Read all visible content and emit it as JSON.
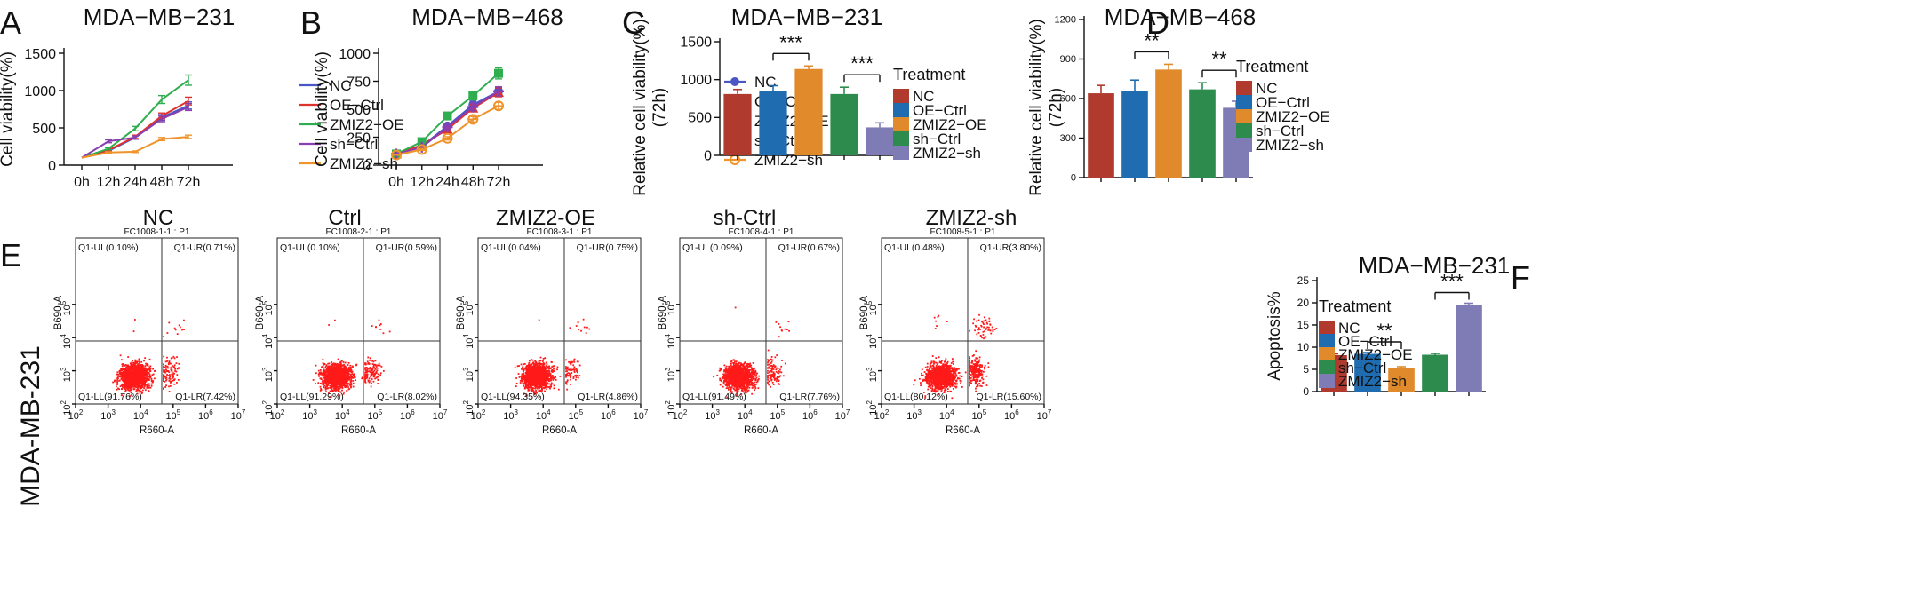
{
  "colors": {
    "nc": "#b03a2e",
    "oe_ctrl": "#1f6db0",
    "zmiz2_oe": "#e08a2c",
    "sh_ctrl": "#2e8b4e",
    "zmiz2_sh": "#7f7bb5",
    "line_nc": "#4a56c8",
    "line_oe_ctrl": "#e0322c",
    "line_zmiz2_oe": "#2fae4f",
    "line_sh_ctrl": "#8a3fb0",
    "line_zmiz2_sh": "#f0932b",
    "dot": "#ff1a1a"
  },
  "chart_data": [
    {
      "panel": "A",
      "type": "line",
      "title": "MDA−MB−231",
      "xlabel": "",
      "ylabel": "Cell viability(%)",
      "x": [
        "0h",
        "12h",
        "24h",
        "48h",
        "72h"
      ],
      "yticks": [
        "0",
        "500",
        "1000",
        "1500"
      ],
      "ylim": [
        0,
        1500
      ],
      "legend": "right",
      "series": [
        {
          "name": "NC",
          "values": [
            100,
            190,
            370,
            640,
            800
          ]
        },
        {
          "name": "OE−Ctrl",
          "values": [
            100,
            200,
            380,
            660,
            860
          ]
        },
        {
          "name": "ZMIZ2−OE",
          "values": [
            100,
            220,
            490,
            880,
            1140
          ]
        },
        {
          "name": "sh−Ctrl",
          "values": [
            100,
            320,
            370,
            620,
            780
          ]
        },
        {
          "name": "ZMIZ2−sh",
          "values": [
            100,
            170,
            180,
            350,
            380
          ]
        }
      ]
    },
    {
      "panel": "B",
      "type": "line",
      "title": "MDA−MB−468",
      "xlabel": "",
      "ylabel": "Cell viability(%)",
      "x": [
        "0h",
        "12h",
        "24h",
        "48h",
        "72h"
      ],
      "yticks": [
        "0",
        "250",
        "500",
        "750",
        "1000"
      ],
      "ylim": [
        0,
        1000
      ],
      "legend": "right",
      "series": [
        {
          "name": "NC",
          "values": [
            100,
            170,
            350,
            540,
            660
          ]
        },
        {
          "name": "OE−Ctrl",
          "values": [
            100,
            180,
            320,
            510,
            650
          ]
        },
        {
          "name": "ZMIZ2−OE",
          "values": [
            100,
            210,
            440,
            620,
            820
          ]
        },
        {
          "name": "sh−Ctrl",
          "values": [
            100,
            160,
            340,
            520,
            660
          ]
        },
        {
          "name": "ZMIZ2−sh",
          "values": [
            90,
            140,
            240,
            410,
            530
          ]
        }
      ]
    },
    {
      "panel": "C",
      "type": "bar",
      "title": "MDA−MB−231",
      "xlabel": "",
      "ylabel": "Relative cell viability(%)",
      "ylabel2": "(72h)",
      "yticks": [
        "0",
        "500",
        "1000",
        "1500"
      ],
      "ylim": [
        0,
        1500
      ],
      "legend_title": "Treatment",
      "legend": "right",
      "categories": [
        "NC",
        "OE−Ctrl",
        "ZMIZ2−OE",
        "sh−Ctrl",
        "ZMIZ2−sh"
      ],
      "values": [
        810,
        850,
        1140,
        810,
        370
      ],
      "errors": [
        60,
        70,
        40,
        90,
        60
      ],
      "significance": [
        {
          "from": 1,
          "to": 2,
          "label": "***"
        },
        {
          "from": 3,
          "to": 4,
          "label": "***"
        }
      ]
    },
    {
      "panel": "D",
      "type": "bar",
      "title": "MDA−MB−468",
      "xlabel": "",
      "ylabel": "Relative cell viability(%)",
      "ylabel2": "(72h)",
      "yticks": [
        "0",
        "300",
        "600",
        "900",
        "1200"
      ],
      "ylim": [
        0,
        1200
      ],
      "legend_title": "Treatment",
      "legend": "right",
      "categories": [
        "NC",
        "OE−Ctrl",
        "ZMIZ2−OE",
        "sh−Ctrl",
        "ZMIZ2−sh"
      ],
      "values": [
        640,
        660,
        820,
        670,
        530
      ],
      "errors": [
        60,
        80,
        40,
        50,
        50
      ],
      "significance": [
        {
          "from": 1,
          "to": 2,
          "label": "**"
        },
        {
          "from": 3,
          "to": 4,
          "label": "**"
        }
      ]
    },
    {
      "panel": "F",
      "type": "bar",
      "title": "MDA−MB−231",
      "xlabel": "",
      "ylabel": "Apoptosis%",
      "yticks": [
        "0",
        "5",
        "10",
        "15",
        "20",
        "25"
      ],
      "ylim": [
        0,
        25
      ],
      "legend_title": "Treatment",
      "legend": "right",
      "categories": [
        "NC",
        "OE−Ctrl",
        "ZMIZ2−OE",
        "sh−Ctrl",
        "ZMIZ2−sh"
      ],
      "values": [
        8.2,
        8.5,
        5.4,
        8.3,
        19.4
      ],
      "errors": [
        0.3,
        0.3,
        0.2,
        0.3,
        0.5
      ],
      "significance": [
        {
          "from": 1,
          "to": 2,
          "label": "**"
        },
        {
          "from": 3,
          "to": 4,
          "label": "***"
        }
      ]
    },
    {
      "panel": "E",
      "type": "scatter",
      "row_label": "MDA-MB-231",
      "xlabel": "R660-A",
      "ylabel": "B690-A",
      "axis_ticks": [
        "2",
        "3",
        "4",
        "5",
        "6",
        "7"
      ],
      "plots": [
        {
          "title": "NC",
          "subtitle": "FC1008-1-1 : P1",
          "ul": "Q1-UL(0.10%)",
          "ur": "Q1-UR(0.71%)",
          "ll": "Q1-LL(91.76%)",
          "lr": "Q1-LR(7.42%)",
          "pct": {
            "ul": 0.1,
            "ur": 0.71,
            "ll": 91.76,
            "lr": 7.42
          }
        },
        {
          "title": "Ctrl",
          "subtitle": "FC1008-2-1 : P1",
          "ul": "Q1-UL(0.10%)",
          "ur": "Q1-UR(0.59%)",
          "ll": "Q1-LL(91.29%)",
          "lr": "Q1-LR(8.02%)",
          "pct": {
            "ul": 0.1,
            "ur": 0.59,
            "ll": 91.29,
            "lr": 8.02
          }
        },
        {
          "title": "ZMIZ2-OE",
          "subtitle": "FC1008-3-1 : P1",
          "ul": "Q1-UL(0.04%)",
          "ur": "Q1-UR(0.75%)",
          "ll": "Q1-LL(94.35%)",
          "lr": "Q1-LR(4.86%)",
          "pct": {
            "ul": 0.04,
            "ur": 0.75,
            "ll": 94.35,
            "lr": 4.86
          }
        },
        {
          "title": "sh-Ctrl",
          "subtitle": "FC1008-4-1 : P1",
          "ul": "Q1-UL(0.09%)",
          "ur": "Q1-UR(0.67%)",
          "ll": "Q1-LL(91.49%)",
          "lr": "Q1-LR(7.76%)",
          "pct": {
            "ul": 0.09,
            "ur": 0.67,
            "ll": 91.49,
            "lr": 7.76
          }
        },
        {
          "title": "ZMIZ2-sh",
          "subtitle": "FC1008-5-1 : P1",
          "ul": "Q1-UL(0.48%)",
          "ur": "Q1-UR(3.80%)",
          "ll": "Q1-LL(80.12%)",
          "lr": "Q1-LR(15.60%)",
          "pct": {
            "ul": 0.48,
            "ur": 3.8,
            "ll": 80.12,
            "lr": 15.6
          }
        }
      ]
    }
  ],
  "panel_letters": [
    "A",
    "B",
    "C",
    "D",
    "E",
    "F"
  ]
}
